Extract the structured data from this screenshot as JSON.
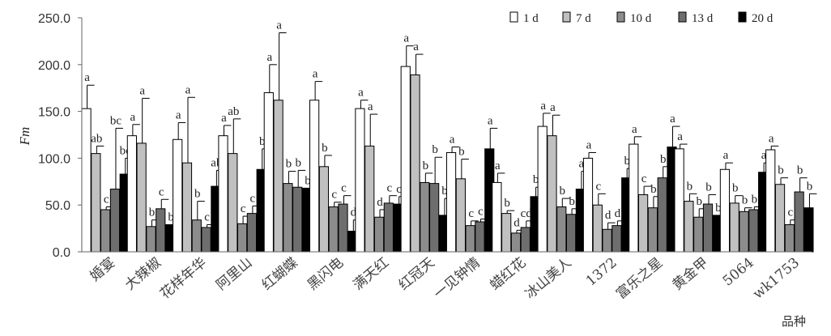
{
  "chart_data": {
    "type": "bar",
    "ylabel": "Fm",
    "xlabel": "品种",
    "ylim": [
      0,
      250
    ],
    "yticks": [
      "0.0",
      "50.0",
      "100.0",
      "150.0",
      "200.0",
      "250.0"
    ],
    "legend_position": "top-right",
    "categories": [
      "婚宴",
      "大辣椒",
      "花样年华",
      "阿里山",
      "红蝴蝶",
      "黑闪电",
      "满天红",
      "红冠天",
      "一见钟情",
      "蜡红花",
      "冰山美人",
      "1372",
      "富乐之星",
      "黄金甲",
      "5064",
      "wk1753"
    ],
    "series": [
      {
        "name": "1 d",
        "color": "#ffffff",
        "values": [
          153,
          124,
          120,
          124,
          170,
          162,
          153,
          198,
          106,
          74,
          134,
          100,
          115,
          110,
          88,
          109
        ],
        "errors": [
          25,
          12,
          18,
          11,
          30,
          20,
          9,
          22,
          6,
          10,
          14,
          6,
          8,
          5,
          7,
          4
        ],
        "labels": [
          "a",
          "a",
          "a",
          "a",
          "a",
          "a",
          "a",
          "a",
          "a",
          "a",
          "a",
          "a",
          "a",
          "a",
          "a",
          "a"
        ]
      },
      {
        "name": "7 d",
        "color": "#c0c0c0",
        "values": [
          105,
          116,
          95,
          105,
          162,
          91,
          113,
          189,
          78,
          41,
          124,
          50,
          61,
          54,
          52,
          72
        ],
        "errors": [
          8,
          48,
          70,
          37,
          72,
          12,
          34,
          22,
          21,
          3,
          22,
          12,
          9,
          8,
          8,
          7
        ],
        "labels": [
          "ab",
          "a",
          "a",
          "ab",
          "a",
          "b",
          "a",
          "a",
          "b",
          "b",
          "a",
          "c",
          "c",
          "b",
          "b",
          "b"
        ]
      },
      {
        "name": "10 d",
        "color": "#8c8c8c",
        "values": [
          45,
          27,
          34,
          30,
          73,
          48,
          37,
          74,
          28,
          20,
          48,
          24,
          47,
          37,
          43,
          29
        ],
        "errors": [
          3,
          7,
          20,
          8,
          13,
          5,
          8,
          10,
          5,
          3,
          9,
          7,
          12,
          9,
          4,
          5
        ],
        "labels": [
          "c",
          "b",
          "b",
          "c",
          "b",
          "c",
          "d",
          "b",
          "c",
          "d",
          "b",
          "d",
          "b",
          "b",
          "b",
          "c"
        ]
      },
      {
        "name": "13 d",
        "color": "#6e6e6e",
        "values": [
          67,
          46,
          26,
          41,
          69,
          51,
          52,
          73,
          32,
          26,
          40,
          28,
          79,
          51,
          45,
          64
        ],
        "errors": [
          65,
          10,
          3,
          8,
          18,
          9,
          8,
          28,
          3,
          7,
          6,
          5,
          12,
          10,
          3,
          15
        ],
        "labels": [
          "bc",
          "c",
          "c",
          "c",
          "b",
          "c",
          "c",
          "b",
          "c",
          "cd",
          "b",
          "d",
          "b",
          "b",
          "b",
          "b"
        ]
      },
      {
        "name": "20 d",
        "color": "#000000",
        "values": [
          83,
          29,
          70,
          88,
          68,
          22,
          51,
          39,
          110,
          59,
          67,
          79,
          112,
          39,
          85,
          47
        ],
        "errors": [
          17,
          0,
          17,
          22,
          0,
          12,
          8,
          18,
          22,
          10,
          19,
          10,
          22,
          0,
          10,
          15
        ],
        "labels": [
          "bc",
          "b",
          "ab",
          "b",
          "b",
          "d",
          "c",
          "b",
          "a",
          "b",
          "a",
          "b",
          "a",
          "b",
          "a",
          "b"
        ]
      }
    ]
  }
}
